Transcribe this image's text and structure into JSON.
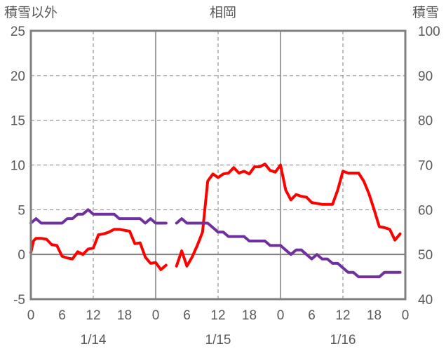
{
  "chart_data": {
    "type": "line",
    "title": "相岡",
    "y_left_label": "積雪以外",
    "y_right_label": "積雪",
    "y_left_range": [
      -5,
      25
    ],
    "y_right_range": [
      40,
      100
    ],
    "y_left_ticks": [
      "25",
      "20",
      "15",
      "10",
      "5",
      "0",
      "-5"
    ],
    "y_right_ticks": [
      "100",
      "90",
      "80",
      "70",
      "60",
      "50",
      "40"
    ],
    "x_range": [
      0,
      72
    ],
    "x_ticks": [
      "0",
      "6",
      "12",
      "18",
      "0",
      "6",
      "12",
      "18",
      "0",
      "6",
      "12",
      "18",
      "0"
    ],
    "date_labels": [
      "1/14",
      "1/15",
      "1/16"
    ],
    "grid": "dashed-horizontal-and-vertical",
    "series": [
      {
        "axis": "left",
        "color": "#ff0000",
        "points": [
          [
            0,
            0.2
          ],
          [
            0.5,
            1.5
          ],
          [
            1,
            1.8
          ],
          [
            2,
            1.8
          ],
          [
            3,
            1.7
          ],
          [
            4,
            1.1
          ],
          [
            5,
            1.0
          ],
          [
            6,
            -0.2
          ],
          [
            7,
            -0.4
          ],
          [
            8,
            -0.5
          ],
          [
            9,
            0.3
          ],
          [
            10,
            0.0
          ],
          [
            11,
            0.6
          ],
          [
            12,
            0.7
          ],
          [
            13,
            2.2
          ],
          [
            14,
            2.3
          ],
          [
            15,
            2.5
          ],
          [
            16,
            2.8
          ],
          [
            17,
            2.8
          ],
          [
            18,
            2.7
          ],
          [
            19,
            2.6
          ],
          [
            20,
            1.2
          ],
          [
            21,
            1.3
          ],
          [
            22,
            -0.3
          ],
          [
            23,
            -1.0
          ],
          [
            24,
            -0.9
          ],
          [
            25,
            -1.7
          ],
          [
            26,
            -1.2
          ],
          null,
          [
            28,
            -1.3
          ],
          [
            29,
            0.4
          ],
          [
            30,
            -1.3
          ],
          [
            31,
            -0.3
          ],
          [
            32,
            1.0
          ],
          [
            33,
            2.5
          ],
          [
            34,
            8.2
          ],
          [
            35,
            9.0
          ],
          [
            36,
            8.6
          ],
          [
            37,
            9.0
          ],
          [
            38,
            9.1
          ],
          [
            39,
            9.7
          ],
          [
            40,
            9.1
          ],
          [
            41,
            9.3
          ],
          [
            42,
            9.0
          ],
          [
            43,
            9.8
          ],
          [
            44,
            9.8
          ],
          [
            45,
            10.1
          ],
          [
            46,
            9.4
          ],
          [
            47,
            9.2
          ],
          [
            48,
            10.0
          ],
          [
            49,
            7.2
          ],
          [
            50,
            6.1
          ],
          [
            51,
            6.7
          ],
          [
            52,
            6.5
          ],
          [
            53,
            6.4
          ],
          [
            54,
            5.8
          ],
          [
            55,
            5.7
          ],
          [
            56,
            5.6
          ],
          [
            57,
            5.6
          ],
          [
            58,
            5.6
          ],
          [
            59,
            7.2
          ],
          [
            60,
            9.3
          ],
          [
            61,
            9.1
          ],
          [
            62,
            9.1
          ],
          [
            63,
            9.1
          ],
          [
            64,
            8.2
          ],
          [
            65,
            6.8
          ],
          [
            66,
            5.0
          ],
          [
            67,
            3.1
          ],
          [
            68,
            3.0
          ],
          [
            69,
            2.8
          ],
          [
            70,
            1.6
          ],
          [
            71,
            2.3
          ]
        ]
      },
      {
        "axis": "right",
        "color": "#7030a0",
        "points": [
          [
            0,
            57
          ],
          [
            1,
            58
          ],
          [
            2,
            57
          ],
          [
            3,
            57
          ],
          [
            4,
            57
          ],
          [
            5,
            57
          ],
          [
            6,
            57
          ],
          [
            7,
            58
          ],
          [
            8,
            58
          ],
          [
            9,
            59
          ],
          [
            10,
            59
          ],
          [
            11,
            60
          ],
          [
            12,
            59
          ],
          [
            13,
            59
          ],
          [
            14,
            59
          ],
          [
            15,
            59
          ],
          [
            16,
            59
          ],
          [
            17,
            58
          ],
          [
            18,
            58
          ],
          [
            19,
            58
          ],
          [
            20,
            58
          ],
          [
            21,
            58
          ],
          [
            22,
            57
          ],
          [
            23,
            58
          ],
          [
            24,
            57
          ],
          [
            25,
            57
          ],
          [
            26,
            57
          ],
          null,
          [
            28,
            57
          ],
          [
            29,
            58
          ],
          [
            30,
            57
          ],
          [
            31,
            57
          ],
          [
            32,
            57
          ],
          [
            33,
            57
          ],
          [
            34,
            57
          ],
          [
            35,
            56
          ],
          [
            36,
            55
          ],
          [
            37,
            55
          ],
          [
            38,
            54
          ],
          [
            39,
            54
          ],
          [
            40,
            54
          ],
          [
            41,
            54
          ],
          [
            42,
            53
          ],
          [
            43,
            53
          ],
          [
            44,
            53
          ],
          [
            45,
            53
          ],
          [
            46,
            52
          ],
          [
            47,
            52
          ],
          [
            48,
            52
          ],
          [
            49,
            51
          ],
          [
            50,
            50
          ],
          [
            51,
            51
          ],
          [
            52,
            51
          ],
          [
            53,
            50
          ],
          [
            54,
            49
          ],
          [
            55,
            50
          ],
          [
            56,
            49
          ],
          [
            57,
            49
          ],
          [
            58,
            48
          ],
          [
            59,
            48
          ],
          [
            60,
            47
          ],
          [
            61,
            46
          ],
          [
            62,
            46
          ],
          [
            63,
            45
          ],
          [
            64,
            45
          ],
          [
            65,
            45
          ],
          [
            66,
            45
          ],
          [
            67,
            45
          ],
          [
            68,
            46
          ],
          [
            69,
            46
          ],
          [
            70,
            46
          ],
          [
            71,
            46
          ]
        ]
      }
    ]
  }
}
